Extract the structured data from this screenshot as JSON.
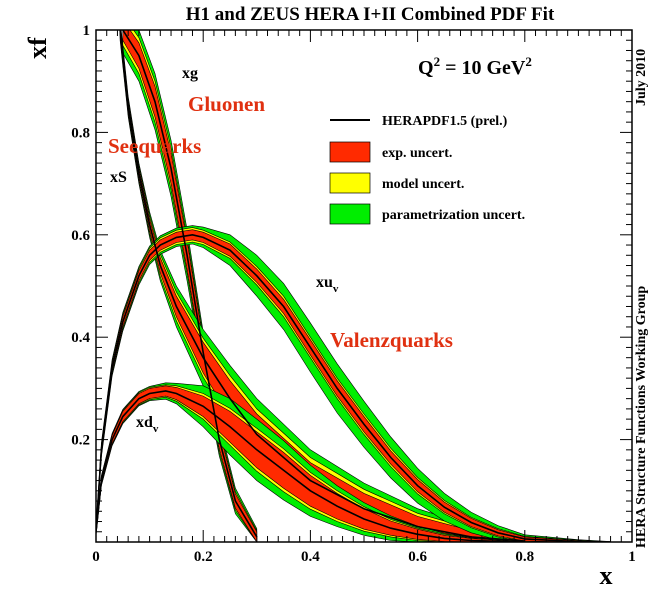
{
  "chart_data": {
    "type": "area",
    "title": "H1 and ZEUS HERA I+II Combined PDF Fit",
    "xlabel": "x",
    "ylabel": "xf",
    "xlim": [
      0,
      1
    ],
    "ylim": [
      0,
      1
    ],
    "x_ticks": [
      "0",
      "0.2",
      "0.4",
      "0.6",
      "0.8",
      "1"
    ],
    "y_ticks": [
      "0.2",
      "0.4",
      "0.6",
      "0.8",
      "1"
    ],
    "scale_label": {
      "prefix": "Q",
      "sup1": "2",
      "mid": " = 10 GeV",
      "sup2": "2"
    },
    "side_texts": [
      "July 2010",
      "HERA Structure Functions Working Group"
    ],
    "legend": {
      "position": "upper-right",
      "entries": [
        {
          "label": "HERAPDF1.5 (prel.)",
          "kind": "line",
          "color": "#000000"
        },
        {
          "label": "exp. uncert.",
          "kind": "box",
          "color": "#ff2a00"
        },
        {
          "label": "model uncert.",
          "kind": "box",
          "color": "#ffff00"
        },
        {
          "label": "parametrization uncert.",
          "kind": "box",
          "color": "#00ee00"
        }
      ]
    },
    "annotations": [
      {
        "text": "Gluonen",
        "color": "#e03010"
      },
      {
        "text": "Seequarks",
        "color": "#e03010"
      },
      {
        "text": "Valenzquarks",
        "color": "#e03010"
      }
    ],
    "curve_labels": [
      {
        "base": "xg",
        "sub": ""
      },
      {
        "base": "xS",
        "sub": ""
      },
      {
        "base": "xu",
        "sub": "v"
      },
      {
        "base": "xd",
        "sub": "v"
      }
    ],
    "colors": {
      "exp": "#ff2a00",
      "model": "#ffff00",
      "param": "#00ee00",
      "central": "#000000"
    },
    "series": [
      {
        "id": "xg",
        "x": [
          0.05,
          0.08,
          0.11,
          0.14,
          0.17,
          0.2,
          0.23,
          0.26,
          0.3
        ],
        "central": [
          1.0,
          0.95,
          0.86,
          0.73,
          0.56,
          0.37,
          0.2,
          0.08,
          0.01
        ],
        "exp": [
          0.02,
          0.025,
          0.03,
          0.03,
          0.028,
          0.022,
          0.018,
          0.014,
          0.01
        ],
        "model": [
          0.03,
          0.035,
          0.04,
          0.04,
          0.036,
          0.03,
          0.024,
          0.018,
          0.012
        ],
        "param": [
          0.045,
          0.05,
          0.055,
          0.055,
          0.05,
          0.04,
          0.032,
          0.025,
          0.016
        ]
      },
      {
        "id": "xS",
        "x": [
          0.045,
          0.06,
          0.08,
          0.1,
          0.12,
          0.15,
          0.2,
          0.25,
          0.3,
          0.4,
          0.5,
          0.6,
          0.7,
          0.8
        ],
        "central": [
          1.0,
          0.85,
          0.72,
          0.62,
          0.54,
          0.46,
          0.36,
          0.28,
          0.21,
          0.12,
          0.065,
          0.03,
          0.01,
          0.002
        ],
        "exp": [
          0.01,
          0.01,
          0.01,
          0.012,
          0.015,
          0.02,
          0.03,
          0.035,
          0.04,
          0.035,
          0.03,
          0.02,
          0.012,
          0.005
        ],
        "model": [
          0.015,
          0.015,
          0.015,
          0.018,
          0.022,
          0.028,
          0.038,
          0.045,
          0.05,
          0.045,
          0.038,
          0.026,
          0.016,
          0.007
        ],
        "param": [
          0.02,
          0.02,
          0.02,
          0.025,
          0.03,
          0.04,
          0.055,
          0.065,
          0.07,
          0.06,
          0.05,
          0.035,
          0.022,
          0.01
        ]
      },
      {
        "id": "xu",
        "x": [
          0.0,
          0.01,
          0.03,
          0.05,
          0.08,
          0.1,
          0.12,
          0.15,
          0.18,
          0.2,
          0.25,
          0.3,
          0.35,
          0.4,
          0.45,
          0.5,
          0.55,
          0.6,
          0.65,
          0.7,
          0.75,
          0.8,
          0.9,
          0.96
        ],
        "central": [
          0.02,
          0.18,
          0.34,
          0.43,
          0.52,
          0.56,
          0.58,
          0.595,
          0.6,
          0.595,
          0.57,
          0.52,
          0.46,
          0.38,
          0.3,
          0.23,
          0.165,
          0.11,
          0.068,
          0.038,
          0.018,
          0.006,
          0.0005,
          0.0
        ],
        "exp": [
          0.005,
          0.007,
          0.008,
          0.01,
          0.01,
          0.01,
          0.01,
          0.01,
          0.01,
          0.01,
          0.012,
          0.013,
          0.014,
          0.015,
          0.015,
          0.015,
          0.013,
          0.012,
          0.01,
          0.008,
          0.006,
          0.004,
          0.002,
          0.0
        ],
        "model": [
          0.007,
          0.01,
          0.012,
          0.014,
          0.014,
          0.014,
          0.014,
          0.014,
          0.014,
          0.014,
          0.016,
          0.018,
          0.02,
          0.02,
          0.02,
          0.02,
          0.018,
          0.016,
          0.013,
          0.01,
          0.008,
          0.005,
          0.003,
          0.0
        ],
        "param": [
          0.01,
          0.014,
          0.016,
          0.018,
          0.018,
          0.018,
          0.018,
          0.018,
          0.018,
          0.02,
          0.03,
          0.04,
          0.045,
          0.048,
          0.048,
          0.045,
          0.04,
          0.034,
          0.027,
          0.02,
          0.014,
          0.008,
          0.004,
          0.001
        ]
      },
      {
        "id": "xd",
        "x": [
          0.0,
          0.01,
          0.03,
          0.05,
          0.08,
          0.1,
          0.13,
          0.15,
          0.2,
          0.25,
          0.3,
          0.35,
          0.4,
          0.45,
          0.5,
          0.55,
          0.6,
          0.65,
          0.7,
          0.8
        ],
        "central": [
          0.02,
          0.12,
          0.2,
          0.245,
          0.28,
          0.29,
          0.295,
          0.29,
          0.265,
          0.225,
          0.18,
          0.14,
          0.1,
          0.07,
          0.045,
          0.027,
          0.015,
          0.007,
          0.003,
          0.0
        ],
        "exp": [
          0.004,
          0.006,
          0.008,
          0.01,
          0.01,
          0.01,
          0.01,
          0.012,
          0.02,
          0.03,
          0.035,
          0.035,
          0.03,
          0.025,
          0.02,
          0.014,
          0.01,
          0.006,
          0.004,
          0.0
        ],
        "model": [
          0.006,
          0.008,
          0.01,
          0.012,
          0.012,
          0.012,
          0.012,
          0.015,
          0.025,
          0.036,
          0.042,
          0.042,
          0.036,
          0.03,
          0.024,
          0.017,
          0.012,
          0.008,
          0.005,
          0.001
        ],
        "param": [
          0.008,
          0.01,
          0.012,
          0.014,
          0.014,
          0.014,
          0.016,
          0.02,
          0.04,
          0.055,
          0.06,
          0.058,
          0.05,
          0.04,
          0.032,
          0.024,
          0.016,
          0.01,
          0.006,
          0.002
        ]
      }
    ]
  }
}
